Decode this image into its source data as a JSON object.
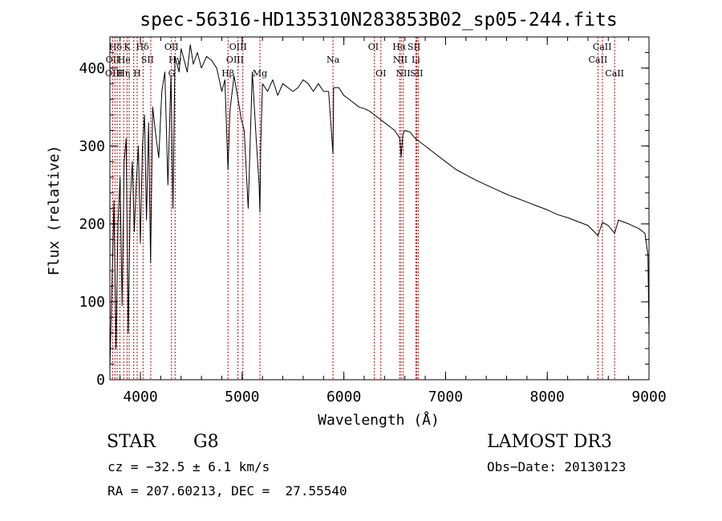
{
  "chart_data": {
    "type": "line",
    "title": "spec-56316-HD135310N283853B02_sp05-244.fits",
    "xlabel": "Wavelength (Å)",
    "ylabel": "Flux (relative)",
    "xlim": [
      3700,
      9000
    ],
    "ylim": [
      0,
      440
    ],
    "xticks": [
      4000,
      5000,
      6000,
      7000,
      8000,
      9000
    ],
    "yticks": [
      0,
      100,
      200,
      300,
      400
    ],
    "grid": false,
    "series": [
      {
        "name": "spectrum",
        "x": [
          3700,
          3720,
          3740,
          3760,
          3780,
          3800,
          3820,
          3840,
          3860,
          3880,
          3900,
          3920,
          3940,
          3960,
          3980,
          4000,
          4020,
          4040,
          4060,
          4080,
          4100,
          4120,
          4150,
          4180,
          4210,
          4240,
          4270,
          4300,
          4320,
          4340,
          4360,
          4380,
          4400,
          4430,
          4460,
          4490,
          4520,
          4560,
          4600,
          4650,
          4700,
          4750,
          4800,
          4830,
          4861,
          4880,
          4920,
          4960,
          4990,
          5020,
          5060,
          5100,
          5140,
          5167,
          5175,
          5183,
          5200,
          5250,
          5300,
          5350,
          5400,
          5450,
          5500,
          5550,
          5600,
          5650,
          5700,
          5750,
          5800,
          5850,
          5893,
          5900,
          5950,
          6000,
          6050,
          6100,
          6150,
          6200,
          6250,
          6300,
          6350,
          6400,
          6450,
          6500,
          6550,
          6563,
          6580,
          6600,
          6650,
          6700,
          6750,
          6800,
          6900,
          7000,
          7100,
          7200,
          7300,
          7400,
          7500,
          7600,
          7700,
          7800,
          7900,
          8000,
          8100,
          8200,
          8300,
          8400,
          8498,
          8542,
          8600,
          8662,
          8700,
          8800,
          8900,
          8960,
          8990,
          9000
        ],
        "values": [
          15,
          120,
          230,
          40,
          200,
          260,
          95,
          280,
          310,
          60,
          230,
          280,
          190,
          255,
          300,
          175,
          300,
          340,
          205,
          330,
          150,
          350,
          315,
          285,
          370,
          395,
          250,
          390,
          220,
          415,
          405,
          395,
          425,
          410,
          395,
          430,
          405,
          420,
          400,
          415,
          410,
          400,
          370,
          385,
          270,
          345,
          390,
          360,
          335,
          320,
          220,
          395,
          305,
          250,
          215,
          300,
          380,
          370,
          385,
          365,
          380,
          375,
          370,
          375,
          385,
          380,
          370,
          380,
          370,
          370,
          290,
          375,
          375,
          365,
          360,
          355,
          350,
          348,
          345,
          340,
          335,
          330,
          325,
          320,
          310,
          285,
          315,
          320,
          318,
          310,
          305,
          300,
          290,
          280,
          270,
          263,
          256,
          250,
          244,
          238,
          233,
          228,
          223,
          218,
          212,
          208,
          203,
          198,
          185,
          202,
          198,
          188,
          205,
          200,
          194,
          188,
          160,
          60
        ]
      }
    ],
    "line_labels": [
      {
        "text": "Hδ",
        "x": 3755,
        "row": 1
      },
      {
        "text": "K",
        "x": 3869,
        "row": 1
      },
      {
        "text": "Hδ",
        "x": 4020,
        "row": 1
      },
      {
        "text": "OII",
        "x": 4305,
        "row": 1
      },
      {
        "text": "OIII",
        "x": 4960,
        "row": 1
      },
      {
        "text": "OI",
        "x": 6290,
        "row": 1
      },
      {
        "text": "Hα",
        "x": 6545,
        "row": 1
      },
      {
        "text": "SII",
        "x": 6690,
        "row": 1
      },
      {
        "text": "CaII",
        "x": 8540,
        "row": 1
      },
      {
        "text": "OII",
        "x": 3727,
        "row": 2
      },
      {
        "text": "He",
        "x": 3840,
        "row": 2
      },
      {
        "text": "SII",
        "x": 4070,
        "row": 2
      },
      {
        "text": "Hγ",
        "x": 4340,
        "row": 2
      },
      {
        "text": "OIII",
        "x": 4930,
        "row": 2
      },
      {
        "text": "Na",
        "x": 5893,
        "row": 2
      },
      {
        "text": "NII",
        "x": 6555,
        "row": 2
      },
      {
        "text": "Li",
        "x": 6708,
        "row": 2
      },
      {
        "text": "CaII",
        "x": 8498,
        "row": 2
      },
      {
        "text": "OIII",
        "x": 3740,
        "row": 3
      },
      {
        "text": "Hη",
        "x": 3835,
        "row": 3
      },
      {
        "text": "H",
        "x": 3968,
        "row": 3
      },
      {
        "text": "G",
        "x": 4307,
        "row": 3
      },
      {
        "text": "Hβ",
        "x": 4861,
        "row": 3
      },
      {
        "text": "Mg",
        "x": 5175,
        "row": 3
      },
      {
        "text": "OI",
        "x": 6364,
        "row": 3
      },
      {
        "text": "NII",
        "x": 6583,
        "row": 3
      },
      {
        "text": "SII",
        "x": 6716,
        "row": 3
      },
      {
        "text": "CaII",
        "x": 8662,
        "row": 3
      }
    ],
    "line_markers": [
      3727,
      3750,
      3771,
      3798,
      3835,
      3869,
      3889,
      3934,
      3968,
      4026,
      4102,
      4305,
      4341,
      4861,
      4959,
      5007,
      5175,
      5893,
      6300,
      6364,
      6548,
      6563,
      6583,
      6708,
      6716,
      6731,
      8498,
      8542,
      8662
    ]
  },
  "info": {
    "class": "STAR",
    "subclass": "G8",
    "survey": "LAMOST DR3",
    "cz": "cz = −32.5 ± 6.1 km/s",
    "obs_date": "Obs−Date: 20130123",
    "coords": "RA = 207.60213, DEC =  27.55540"
  },
  "colors": {
    "spectrum": "#000000",
    "markers": "#d00000",
    "axes": "#000000"
  }
}
